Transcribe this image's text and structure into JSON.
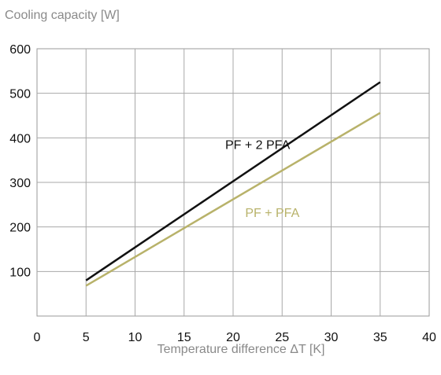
{
  "chart_data": {
    "type": "line",
    "title": "",
    "ylabel": "Cooling capacity [W]",
    "xlabel": "Temperature difference ΔT [K]",
    "xlim": [
      0,
      40
    ],
    "ylim": [
      0,
      600
    ],
    "xticks": [
      0,
      5,
      10,
      15,
      20,
      25,
      30,
      35,
      40
    ],
    "yticks": [
      100,
      200,
      300,
      400,
      500,
      600
    ],
    "grid": true,
    "legend": "inline",
    "series": [
      {
        "name": "PF + 2 PFA",
        "color": "#111111",
        "x": [
          5,
          35
        ],
        "y": [
          80,
          525
        ]
      },
      {
        "name": "PF + PFA",
        "color": "#b8b26a",
        "x": [
          5,
          35
        ],
        "y": [
          68,
          456
        ]
      }
    ]
  }
}
